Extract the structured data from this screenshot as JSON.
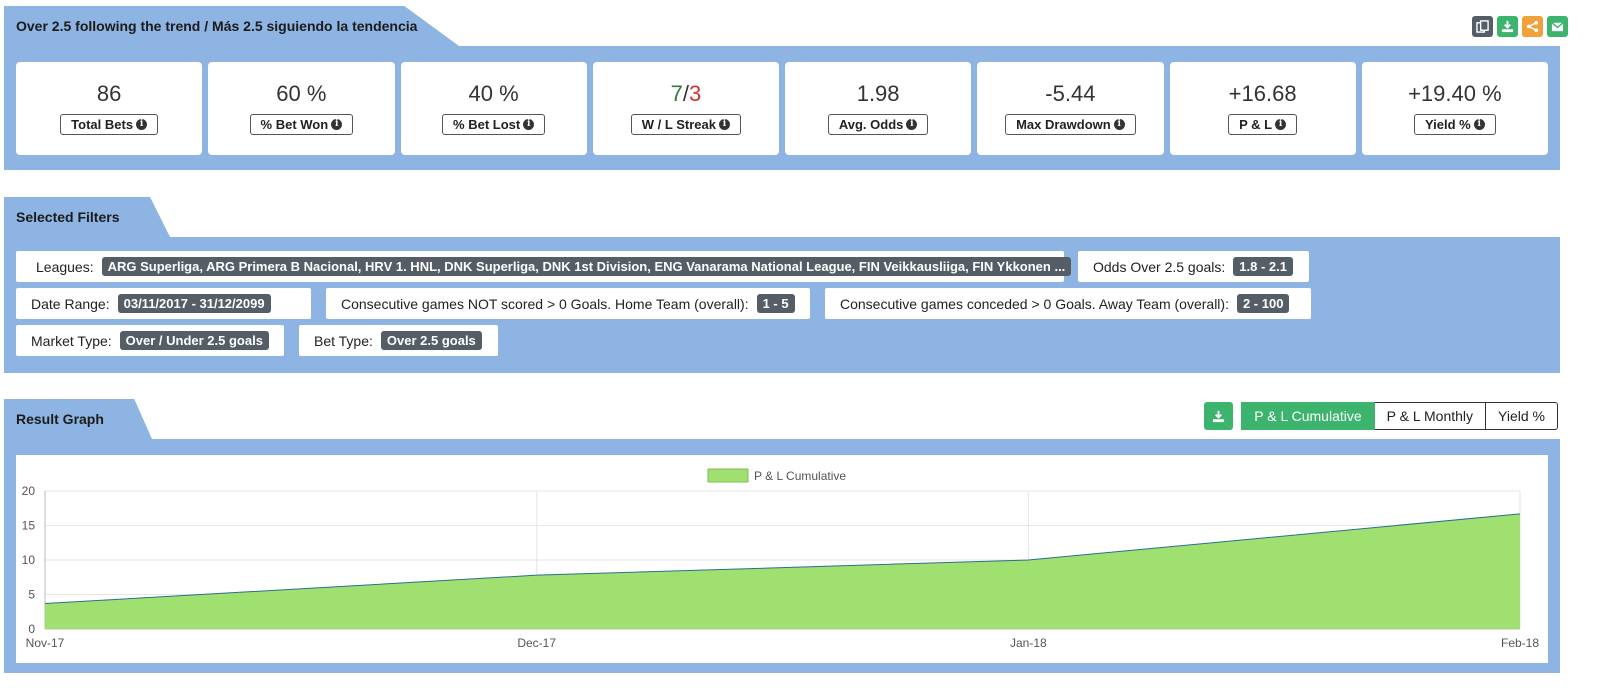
{
  "header": {
    "title": "Over 2.5 following the trend / Más 2.5 siguiendo la tendencia",
    "icons": [
      "copy-icon",
      "download-icon",
      "share-icon",
      "email-icon"
    ],
    "icon_colors": [
      "#555d66",
      "#3cb46e",
      "#f0a13a",
      "#3cb46e"
    ]
  },
  "stats": [
    {
      "value": "86",
      "label": "Total Bets"
    },
    {
      "value": "60 %",
      "label": "% Bet Won"
    },
    {
      "value": "40 %",
      "label": "% Bet Lost"
    },
    {
      "value_w": "7",
      "value_sep": "/",
      "value_l": "3",
      "label": "W / L Streak"
    },
    {
      "value": "1.98",
      "label": "Avg. Odds"
    },
    {
      "value": "-5.44",
      "label": "Max Drawdown"
    },
    {
      "value": "+16.68",
      "label": "P & L"
    },
    {
      "value": "+19.40 %",
      "label": "Yield %"
    }
  ],
  "filters": {
    "title": "Selected Filters",
    "leagues_label": "Leagues:",
    "leagues_value": "ARG Superliga, ARG Primera B Nacional, HRV 1. HNL, DNK Superliga, DNK 1st Division, ENG Vanarama National League, FIN Veikkausliiga, FIN Ykkonen ...",
    "odds_label": "Odds Over 2.5 goals:",
    "odds_value": "1.8 - 2.1",
    "date_label": "Date Range:",
    "date_value": "03/11/2017 - 31/12/2099",
    "home_label": "Consecutive games NOT scored > 0 Goals. Home Team (overall):",
    "home_value": "1 - 5",
    "away_label": "Consecutive games conceded > 0 Goals. Away Team (overall):",
    "away_value": "2 - 100",
    "market_label": "Market Type:",
    "market_value": "Over / Under 2.5 goals",
    "bet_label": "Bet Type:",
    "bet_value": "Over 2.5 goals"
  },
  "graph": {
    "title": "Result Graph",
    "buttons": [
      "P & L Cumulative",
      "P & L Monthly",
      "Yield %"
    ],
    "active": "P & L Cumulative",
    "accent": "#3cb46e"
  },
  "chart_data": {
    "type": "area",
    "categories": [
      "Nov-17",
      "Dec-17",
      "Jan-18",
      "Feb-18"
    ],
    "series": [
      {
        "name": "P & L Cumulative",
        "values": [
          3.7,
          7.8,
          10.0,
          16.68
        ]
      }
    ],
    "yticks": [
      0,
      5,
      10,
      15,
      20
    ],
    "ylim": [
      0,
      20
    ],
    "grid": true,
    "legend": "top-center",
    "fill_color": "#a0e070",
    "line_color": "#2a6f8f"
  }
}
